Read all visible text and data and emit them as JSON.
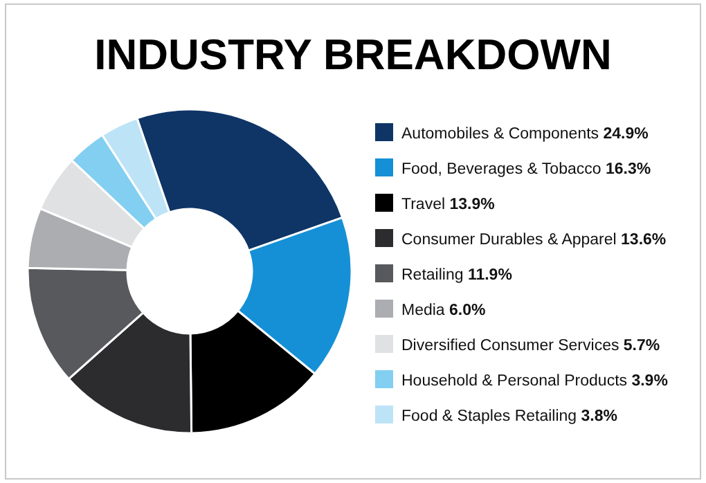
{
  "chart_data": {
    "type": "donut",
    "title": "INDUSTRY BREAKDOWN",
    "categories": [
      "Automobiles & Components",
      "Food, Beverages & Tobacco",
      "Travel",
      "Consumer Durables & Apparel",
      "Retailing",
      "Media",
      "Diversified Consumer Services",
      "Household & Personal Products",
      "Food & Staples Retailing"
    ],
    "values": [
      24.9,
      16.3,
      13.9,
      13.6,
      11.9,
      6.0,
      5.7,
      3.9,
      3.8
    ],
    "value_labels": [
      "24.9%",
      "16.3%",
      "13.9%",
      "13.6%",
      "11.9%",
      "6.0%",
      "5.7%",
      "3.9%",
      "3.8%"
    ],
    "colors": [
      "#0f3567",
      "#1590d6",
      "#000000",
      "#2c2c2e",
      "#58595d",
      "#acadb0",
      "#e0e1e3",
      "#82cff1",
      "#bde3f7"
    ],
    "legend": "right"
  }
}
